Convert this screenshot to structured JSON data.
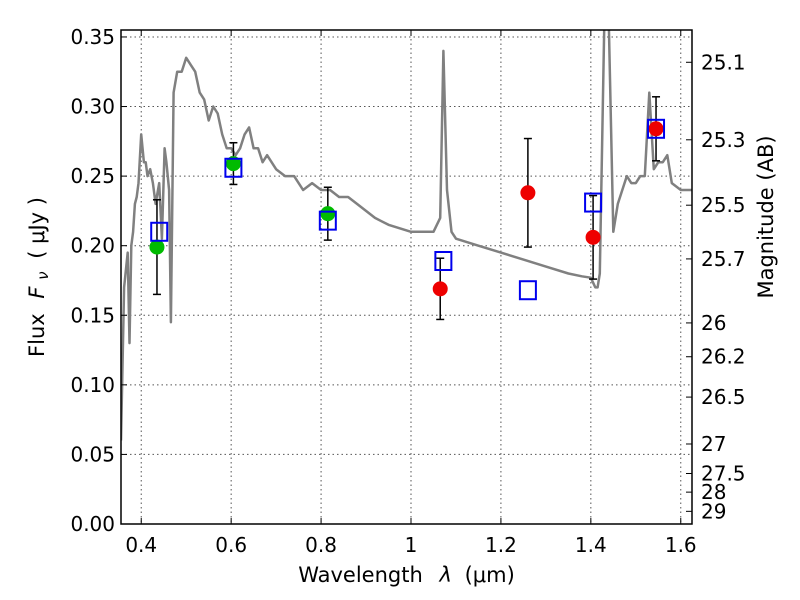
{
  "chart_data": {
    "type": "scatter",
    "xlabel": "Wavelength",
    "xlabel_symbol": "λ",
    "xlabel_unit": "(μm)",
    "ylabel": "Flux",
    "ylabel_symbol": "F",
    "ylabel_subscript": "ν",
    "ylabel_unit": "( μJy )",
    "y2label": "Magnitude (AB)",
    "xlim": [
      0.355,
      1.625
    ],
    "ylim": [
      0.0,
      0.355
    ],
    "xticks": [
      0.4,
      0.6,
      0.8,
      1.0,
      1.2,
      1.4,
      1.6
    ],
    "xtick_labels": [
      "0.4",
      "0.6",
      "0.8",
      "1",
      "1.2",
      "1.4",
      "1.6"
    ],
    "yticks": [
      0.0,
      0.05,
      0.1,
      0.15,
      0.2,
      0.25,
      0.3,
      0.35
    ],
    "ytick_labels": [
      "0.00",
      "0.05",
      "0.10",
      "0.15",
      "0.20",
      "0.25",
      "0.30",
      "0.35"
    ],
    "y2ticks": [
      {
        "label": "25.1",
        "flux": 0.3318
      },
      {
        "label": "25.3",
        "flux": 0.2761
      },
      {
        "label": "25.5",
        "flux": 0.2291
      },
      {
        "label": "25.7",
        "flux": 0.1905
      },
      {
        "label": "26",
        "flux": 0.1445
      },
      {
        "label": "26.2",
        "flux": 0.1202
      },
      {
        "label": "26.5",
        "flux": 0.0912
      },
      {
        "label": "27",
        "flux": 0.0575
      },
      {
        "label": "27.5",
        "flux": 0.0363
      },
      {
        "label": "28",
        "flux": 0.0229
      },
      {
        "label": "29",
        "flux": 0.0091
      }
    ],
    "grid": true,
    "colors": {
      "spectrum": "#808080",
      "observed_green": "#00bb00",
      "observed_red": "#ee0000",
      "model": "#0000ee",
      "errorbar": "#000000"
    },
    "series": [
      {
        "marker": "line",
        "x": [
          0.355,
          0.362,
          0.37,
          0.374,
          0.378,
          0.382,
          0.386,
          0.39,
          0.394,
          0.4,
          0.406,
          0.41,
          0.414,
          0.42,
          0.426,
          0.432,
          0.44,
          0.446,
          0.452,
          0.456,
          0.462,
          0.466,
          0.472,
          0.48,
          0.49,
          0.5,
          0.51,
          0.52,
          0.53,
          0.54,
          0.55,
          0.56,
          0.57,
          0.58,
          0.59,
          0.6,
          0.61,
          0.62,
          0.63,
          0.64,
          0.65,
          0.66,
          0.67,
          0.68,
          0.69,
          0.7,
          0.72,
          0.74,
          0.76,
          0.78,
          0.8,
          0.82,
          0.84,
          0.86,
          0.88,
          0.9,
          0.92,
          0.95,
          1.0,
          1.03,
          1.05,
          1.065,
          1.072,
          1.08,
          1.09,
          1.1,
          1.15,
          1.2,
          1.25,
          1.3,
          1.35,
          1.38,
          1.4,
          1.41,
          1.415,
          1.42,
          1.43,
          1.44,
          1.45,
          1.46,
          1.48,
          1.49,
          1.5,
          1.51,
          1.52,
          1.53,
          1.54,
          1.55,
          1.56,
          1.57,
          1.58,
          1.6,
          1.625
        ],
        "y": [
          0.06,
          0.17,
          0.195,
          0.13,
          0.2,
          0.21,
          0.23,
          0.235,
          0.245,
          0.28,
          0.26,
          0.26,
          0.25,
          0.255,
          0.245,
          0.23,
          0.245,
          0.205,
          0.27,
          0.26,
          0.24,
          0.145,
          0.31,
          0.325,
          0.325,
          0.335,
          0.33,
          0.325,
          0.31,
          0.305,
          0.29,
          0.3,
          0.295,
          0.28,
          0.27,
          0.27,
          0.265,
          0.27,
          0.28,
          0.285,
          0.27,
          0.27,
          0.26,
          0.265,
          0.26,
          0.255,
          0.25,
          0.25,
          0.24,
          0.245,
          0.24,
          0.24,
          0.235,
          0.235,
          0.23,
          0.225,
          0.22,
          0.215,
          0.21,
          0.21,
          0.21,
          0.22,
          0.34,
          0.24,
          0.21,
          0.205,
          0.2,
          0.195,
          0.19,
          0.185,
          0.18,
          0.178,
          0.177,
          0.17,
          0.17,
          0.18,
          0.36,
          0.36,
          0.21,
          0.23,
          0.25,
          0.245,
          0.245,
          0.25,
          0.25,
          0.31,
          0.255,
          0.26,
          0.26,
          0.265,
          0.245,
          0.24,
          0.24
        ]
      },
      {
        "marker": "circle",
        "color": "#00bb00",
        "x": [
          0.435,
          0.605,
          0.815
        ],
        "y": [
          0.199,
          0.259,
          0.223
        ],
        "yerr": [
          0.034,
          0.015,
          0.019
        ]
      },
      {
        "marker": "circle",
        "color": "#ee0000",
        "x": [
          1.065,
          1.26,
          1.405,
          1.545
        ],
        "y": [
          0.169,
          0.238,
          0.206,
          0.284
        ],
        "yerr": [
          0.022,
          0.039,
          0.03,
          0.023
        ]
      },
      {
        "marker": "square-open",
        "color": "#0000ee",
        "x": [
          0.44,
          0.605,
          0.815,
          1.072,
          1.26,
          1.405,
          1.545
        ],
        "y": [
          0.21,
          0.256,
          0.218,
          0.189,
          0.168,
          0.231,
          0.284
        ]
      }
    ]
  }
}
